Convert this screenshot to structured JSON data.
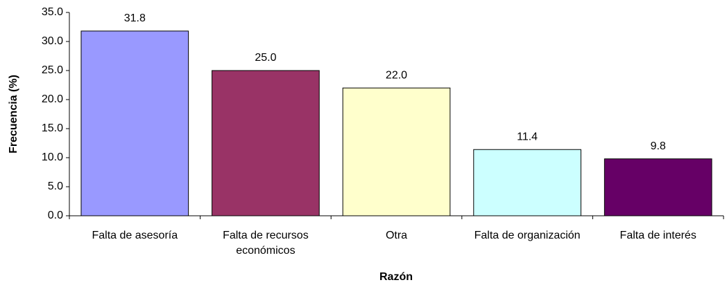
{
  "chart_data": {
    "type": "bar",
    "x_label": "Razón",
    "y_label": "Frecuencia (%)",
    "categories": [
      "Falta de asesoría",
      "Falta de recursos económicos",
      "Otra",
      "Falta de organización",
      "Falta de interés"
    ],
    "values": [
      31.8,
      25.0,
      22.0,
      11.4,
      9.8
    ],
    "value_labels": [
      "31.8",
      "25.0",
      "22.0",
      "11.4",
      "9.8"
    ],
    "colors": [
      "#9999ff",
      "#993366",
      "#ffffcc",
      "#ccffff",
      "#660066"
    ],
    "ylim": [
      0,
      35
    ],
    "yticks": [
      {
        "value": 0,
        "label": "0.0"
      },
      {
        "value": 5,
        "label": "5.0"
      },
      {
        "value": 10,
        "label": "10.0"
      },
      {
        "value": 15,
        "label": "15.0"
      },
      {
        "value": 20,
        "label": "20.0"
      },
      {
        "value": 25,
        "label": "25.0"
      },
      {
        "value": 30,
        "label": "30.0"
      },
      {
        "value": 35,
        "label": "35.0"
      }
    ]
  }
}
